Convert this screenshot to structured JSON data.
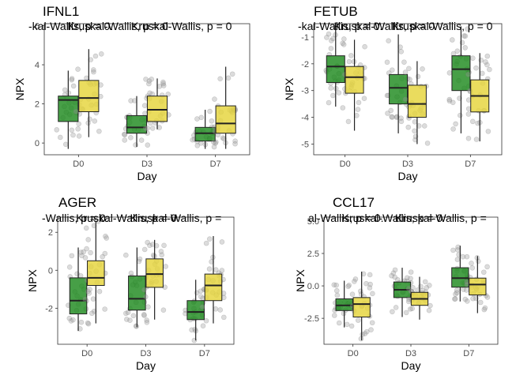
{
  "colors": {
    "d0_low": "#1f8a1f",
    "d0_high": "#e5d43a",
    "points": "#9a9a9a",
    "panel_border": "#333333"
  },
  "chart_data": [
    {
      "type": "box",
      "title": "IFNL1",
      "annotations": [
        "-kal-Wallis, p = 0.",
        "Kruskal-Wallis, p = 0",
        "Kruskal-Wallis, p = 0"
      ],
      "xlabel": "Day",
      "ylabel": "NPX",
      "categories": [
        "D0",
        "D3",
        "D7"
      ],
      "ylim": [
        -0.6,
        6.1
      ],
      "yticks": [
        0,
        2,
        4,
        6
      ],
      "series": [
        {
          "boxes": [
            {
              "q1": 1.1,
              "med": 2.2,
              "q3": 2.4,
              "lo": -0.3,
              "hi": 3.7
            },
            {
              "q1": 0.5,
              "med": 0.8,
              "q3": 1.4,
              "lo": -0.2,
              "hi": 2.4
            },
            {
              "q1": 0.1,
              "med": 0.5,
              "q3": 0.8,
              "lo": -0.3,
              "hi": 1.7
            }
          ]
        },
        {
          "boxes": [
            {
              "q1": 1.6,
              "med": 2.3,
              "q3": 3.2,
              "lo": 0.3,
              "hi": 4.8
            },
            {
              "q1": 1.1,
              "med": 1.7,
              "q3": 2.4,
              "lo": 0.7,
              "hi": 3.3
            },
            {
              "q1": 0.5,
              "med": 1.0,
              "q3": 1.9,
              "lo": -0.3,
              "hi": 3.9
            }
          ]
        }
      ]
    },
    {
      "type": "box",
      "title": "FETUB",
      "annotations": [
        "-kal-Wallis, p = 0.",
        "Kruskal-Wallis, p = 0",
        "Kruskal-Wallis, p = 0"
      ],
      "xlabel": "Day",
      "ylabel": "NPX",
      "categories": [
        "D0",
        "D3",
        "D7"
      ],
      "ylim": [
        -5.4,
        -0.5
      ],
      "yticks": [
        -5,
        -4,
        -3,
        -2,
        -1
      ],
      "series": [
        {
          "boxes": [
            {
              "q1": -2.7,
              "med": -2.1,
              "q3": -1.7,
              "lo": -3.6,
              "hi": -0.7
            },
            {
              "q1": -3.5,
              "med": -2.9,
              "q3": -2.4,
              "lo": -4.6,
              "hi": -0.9
            },
            {
              "q1": -3.0,
              "med": -2.2,
              "q3": -1.7,
              "lo": -4.6,
              "hi": -0.6
            }
          ]
        },
        {
          "boxes": [
            {
              "q1": -3.1,
              "med": -2.5,
              "q3": -2.1,
              "lo": -4.5,
              "hi": -1.1
            },
            {
              "q1": -4.0,
              "med": -3.5,
              "q3": -2.8,
              "lo": -5.0,
              "hi": -1.9
            },
            {
              "q1": -3.8,
              "med": -3.2,
              "q3": -2.6,
              "lo": -4.9,
              "hi": -1.6
            }
          ]
        }
      ]
    },
    {
      "type": "box",
      "title": "AGER",
      "annotations": [
        "-Wallis, p = 0.",
        "Kruskal-Wallis, p = 0",
        "Kruskal-Wallis, p ="
      ],
      "xlabel": "Day",
      "ylabel": "NPX",
      "categories": [
        "D0",
        "D3",
        "D7"
      ],
      "ylim": [
        -3.9,
        2.8
      ],
      "yticks": [
        -2,
        0,
        2
      ],
      "series": [
        {
          "boxes": [
            {
              "q1": -2.3,
              "med": -1.6,
              "q3": -0.4,
              "lo": -3.2,
              "hi": 1.2
            },
            {
              "q1": -2.1,
              "med": -1.5,
              "q3": -0.3,
              "lo": -3.0,
              "hi": 1.2
            },
            {
              "q1": -2.6,
              "med": -2.2,
              "q3": -1.6,
              "lo": -3.7,
              "hi": -0.5
            }
          ]
        },
        {
          "boxes": [
            {
              "q1": -0.8,
              "med": -0.4,
              "q3": 0.5,
              "lo": -2.8,
              "hi": 2.6
            },
            {
              "q1": -0.9,
              "med": -0.2,
              "q3": 0.6,
              "lo": -2.6,
              "hi": 1.6
            },
            {
              "q1": -1.6,
              "med": -0.8,
              "q3": -0.2,
              "lo": -2.8,
              "hi": 1.8
            }
          ]
        }
      ]
    },
    {
      "type": "box",
      "title": "CCL17",
      "annotations": [
        "al-Wallis, p = 0.",
        "Kruskal-Wallis, p = 0",
        "Kruskal-Wallis, p ="
      ],
      "xlabel": "Day",
      "ylabel": "NPX",
      "categories": [
        "D0",
        "D3",
        "D7"
      ],
      "ylim": [
        -4.5,
        5.3
      ],
      "yticks": [
        -2.5,
        0.0,
        2.5,
        5.0
      ],
      "ytick_labels": [
        "-2.5",
        "0.0",
        "2.5",
        "5.0"
      ],
      "series": [
        {
          "boxes": [
            {
              "q1": -1.9,
              "med": -1.5,
              "q3": -1.0,
              "lo": -3.2,
              "hi": 0.4
            },
            {
              "q1": -0.9,
              "med": -0.3,
              "q3": 0.3,
              "lo": -2.4,
              "hi": 1.4
            },
            {
              "q1": -0.1,
              "med": 0.6,
              "q3": 1.4,
              "lo": -1.2,
              "hi": 3.1
            }
          ]
        },
        {
          "boxes": [
            {
              "q1": -2.4,
              "med": -1.4,
              "q3": -0.9,
              "lo": -4.2,
              "hi": 1.1
            },
            {
              "q1": -1.5,
              "med": -1.0,
              "q3": -0.5,
              "lo": -2.6,
              "hi": 0.7
            },
            {
              "q1": -0.7,
              "med": 0.1,
              "q3": 0.6,
              "lo": -2.1,
              "hi": 2.3
            }
          ]
        }
      ]
    }
  ]
}
